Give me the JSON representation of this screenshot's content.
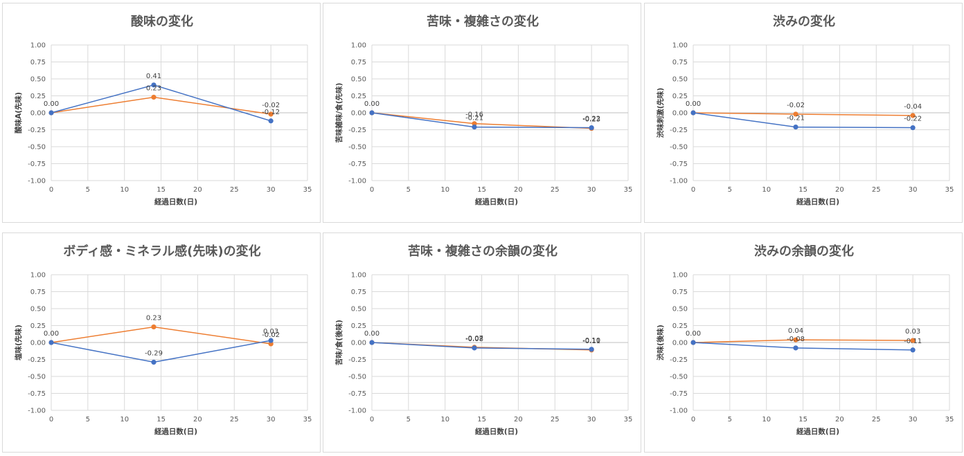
{
  "colors": {
    "blue": "#4472c4",
    "orange": "#ed7d31",
    "grid": "#d9d9d9"
  },
  "chart_data": [
    {
      "type": "line",
      "title": "酸味の変化",
      "xlabel": "経過日数(日)",
      "ylabel": "酸味A(先味)",
      "xlim": [
        0,
        35
      ],
      "ylim": [
        -1.0,
        1.0
      ],
      "xticks": [
        "0",
        "5",
        "10",
        "15",
        "20",
        "25",
        "30",
        "35"
      ],
      "yticks": [
        "1.00",
        "0.75",
        "0.50",
        "0.25",
        "0.00",
        "-0.25",
        "-0.50",
        "-0.75",
        "-1.00"
      ],
      "grid": true,
      "series": [
        {
          "color": "blue",
          "points": [
            {
              "x": 0,
              "y": 0.0
            },
            {
              "x": 14,
              "y": 0.41
            },
            {
              "x": 30,
              "y": -0.12
            }
          ],
          "labels": [
            "0.00",
            "0.41",
            "-0.12"
          ]
        },
        {
          "color": "orange",
          "points": [
            {
              "x": 0,
              "y": 0.0
            },
            {
              "x": 14,
              "y": 0.23
            },
            {
              "x": 30,
              "y": -0.02
            }
          ],
          "labels": [
            "",
            "0.23",
            "-0.02"
          ]
        }
      ]
    },
    {
      "type": "line",
      "title": "苦味・複雑さの変化",
      "xlabel": "経過日数(日)",
      "ylabel": "苦味雑味/食(先味)",
      "xlim": [
        0,
        35
      ],
      "ylim": [
        -1.0,
        1.0
      ],
      "xticks": [
        "0",
        "5",
        "10",
        "15",
        "20",
        "25",
        "30",
        "35"
      ],
      "yticks": [
        "1.00",
        "0.75",
        "0.50",
        "0.25",
        "0.00",
        "-0.25",
        "-0.50",
        "-0.75",
        "-1.00"
      ],
      "grid": true,
      "series": [
        {
          "color": "blue",
          "points": [
            {
              "x": 0,
              "y": 0.0
            },
            {
              "x": 14,
              "y": -0.21
            },
            {
              "x": 30,
              "y": -0.22
            }
          ],
          "labels": [
            "0.00",
            "-0.21",
            "-0.22"
          ]
        },
        {
          "color": "orange",
          "points": [
            {
              "x": 0,
              "y": 0.0
            },
            {
              "x": 14,
              "y": -0.16
            },
            {
              "x": 30,
              "y": -0.23
            }
          ],
          "labels": [
            "",
            "-0.16",
            "-0.23"
          ]
        }
      ]
    },
    {
      "type": "line",
      "title": "渋みの変化",
      "xlabel": "経過日数(日)",
      "ylabel": "渋味刺激(先味)",
      "xlim": [
        0,
        35
      ],
      "ylim": [
        -1.0,
        1.0
      ],
      "xticks": [
        "0",
        "5",
        "10",
        "15",
        "20",
        "25",
        "30",
        "35"
      ],
      "yticks": [
        "1.00",
        "0.75",
        "0.50",
        "0.25",
        "0.00",
        "-0.25",
        "-0.50",
        "-0.75",
        "-1.00"
      ],
      "grid": true,
      "series": [
        {
          "color": "blue",
          "points": [
            {
              "x": 0,
              "y": 0.0
            },
            {
              "x": 14,
              "y": -0.21
            },
            {
              "x": 30,
              "y": -0.22
            }
          ],
          "labels": [
            "0.00",
            "-0.21",
            "-0.22"
          ]
        },
        {
          "color": "orange",
          "points": [
            {
              "x": 0,
              "y": 0.0
            },
            {
              "x": 14,
              "y": -0.02
            },
            {
              "x": 30,
              "y": -0.04
            }
          ],
          "labels": [
            "",
            "-0.02",
            "-0.04"
          ]
        }
      ]
    },
    {
      "type": "line",
      "title": "ボディ感・ミネラル感(先味)の変化",
      "xlabel": "経過日数(日)",
      "ylabel": "塩味(先味)",
      "xlim": [
        0,
        35
      ],
      "ylim": [
        -1.0,
        1.0
      ],
      "xticks": [
        "0",
        "5",
        "10",
        "15",
        "20",
        "25",
        "30",
        "35"
      ],
      "yticks": [
        "1.00",
        "0.75",
        "0.50",
        "0.25",
        "0.00",
        "-0.25",
        "-0.50",
        "-0.75",
        "-1.00"
      ],
      "grid": true,
      "series": [
        {
          "color": "blue",
          "points": [
            {
              "x": 0,
              "y": 0.0
            },
            {
              "x": 14,
              "y": -0.29
            },
            {
              "x": 30,
              "y": 0.03
            }
          ],
          "labels": [
            "0.00",
            "-0.29",
            "0.03"
          ]
        },
        {
          "color": "orange",
          "points": [
            {
              "x": 0,
              "y": 0.0
            },
            {
              "x": 14,
              "y": 0.23
            },
            {
              "x": 30,
              "y": -0.02
            }
          ],
          "labels": [
            "",
            "0.23",
            "-0.02"
          ]
        }
      ]
    },
    {
      "type": "line",
      "title": "苦味・複雑さの余韻の変化",
      "xlabel": "経過日数(日)",
      "ylabel": "苦味/食(後味)",
      "xlim": [
        0,
        35
      ],
      "ylim": [
        -1.0,
        1.0
      ],
      "xticks": [
        "0",
        "5",
        "10",
        "15",
        "20",
        "25",
        "30",
        "35"
      ],
      "yticks": [
        "1.00",
        "0.75",
        "0.50",
        "0.25",
        "0.00",
        "-0.25",
        "-0.50",
        "-0.75",
        "-1.00"
      ],
      "grid": true,
      "series": [
        {
          "color": "blue",
          "points": [
            {
              "x": 0,
              "y": 0.0
            },
            {
              "x": 14,
              "y": -0.08
            },
            {
              "x": 30,
              "y": -0.1
            }
          ],
          "labels": [
            "0.00",
            "-0.08",
            "-0.10"
          ]
        },
        {
          "color": "orange",
          "points": [
            {
              "x": 0,
              "y": 0.0
            },
            {
              "x": 14,
              "y": -0.07
            },
            {
              "x": 30,
              "y": -0.11
            }
          ],
          "labels": [
            "",
            "-0.07",
            "-0.11"
          ]
        }
      ]
    },
    {
      "type": "line",
      "title": "渋みの余韻の変化",
      "xlabel": "経過日数(日)",
      "ylabel": "渋味(後味)",
      "xlim": [
        0,
        35
      ],
      "ylim": [
        -1.0,
        1.0
      ],
      "xticks": [
        "0",
        "5",
        "10",
        "15",
        "20",
        "25",
        "30",
        "35"
      ],
      "yticks": [
        "1.00",
        "0.75",
        "0.50",
        "0.25",
        "0.00",
        "-0.25",
        "-0.50",
        "-0.75",
        "-1.00"
      ],
      "grid": true,
      "series": [
        {
          "color": "blue",
          "points": [
            {
              "x": 0,
              "y": 0.0
            },
            {
              "x": 14,
              "y": -0.08
            },
            {
              "x": 30,
              "y": -0.11
            }
          ],
          "labels": [
            "0.00",
            "-0.08",
            "-0.11"
          ]
        },
        {
          "color": "orange",
          "points": [
            {
              "x": 0,
              "y": 0.0
            },
            {
              "x": 14,
              "y": 0.04
            },
            {
              "x": 30,
              "y": 0.03
            }
          ],
          "labels": [
            "",
            "0.04",
            "0.03"
          ]
        }
      ]
    }
  ]
}
